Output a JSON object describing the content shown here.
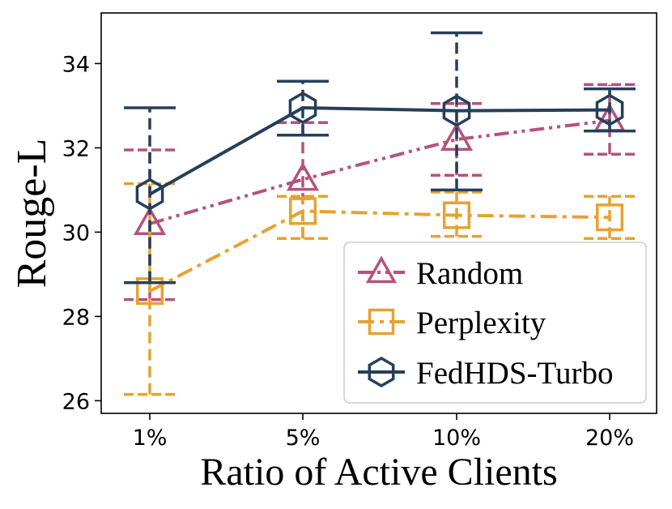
{
  "chart_data": {
    "type": "line",
    "title": "",
    "xlabel": "Ratio of Active Clients",
    "ylabel": "Rouge-L",
    "categories": [
      "1%",
      "5%",
      "10%",
      "20%"
    ],
    "ylim": [
      25.7,
      35.2
    ],
    "yticks": [
      26,
      28,
      30,
      32,
      34
    ],
    "grid": false,
    "legend_position": "lower-right",
    "series": [
      {
        "name": "Random",
        "marker": "triangle",
        "line_style": "dash-dot-dot",
        "color": "#b5527e",
        "values": [
          30.2,
          31.25,
          32.2,
          32.65
        ],
        "err_low": [
          28.4,
          29.85,
          31.35,
          31.85
        ],
        "err_high": [
          31.95,
          32.6,
          33.05,
          33.5
        ]
      },
      {
        "name": "Perplexity",
        "marker": "square",
        "line_style": "dash-dot",
        "color": "#e6a22f",
        "values": [
          28.6,
          30.5,
          30.4,
          30.35
        ],
        "err_low": [
          26.15,
          29.85,
          29.9,
          29.85
        ],
        "err_high": [
          31.15,
          30.85,
          30.95,
          30.85
        ]
      },
      {
        "name": "FedHDS-Turbo",
        "marker": "hexagon",
        "line_style": "solid",
        "color": "#253f5a",
        "values": [
          30.9,
          32.95,
          32.88,
          32.9
        ],
        "err_low": [
          28.8,
          32.3,
          31.0,
          32.4
        ],
        "err_high": [
          32.95,
          33.58,
          34.73,
          33.4
        ]
      }
    ]
  }
}
